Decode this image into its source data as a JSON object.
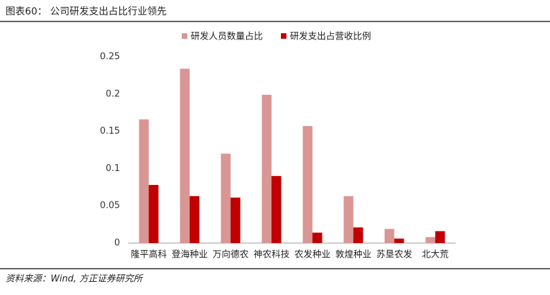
{
  "chart_data": {
    "type": "bar",
    "title": "图表60：  公司研发支出占比行业领先",
    "source": "资料来源：Wind, 方正证券研究所",
    "categories": [
      "隆平高科",
      "登海种业",
      "万向德农",
      "神农科技",
      "农发种业",
      "敦煌种业",
      "苏垦农发",
      "北大荒"
    ],
    "series": [
      {
        "name": "研发人员数量占比",
        "color": "#d99694",
        "values": [
          0.166,
          0.234,
          0.12,
          0.199,
          0.157,
          0.063,
          0.019,
          0.008
        ]
      },
      {
        "name": "研发支出占营收比例",
        "color": "#c00000",
        "values": [
          0.078,
          0.063,
          0.061,
          0.09,
          0.014,
          0.021,
          0.006,
          0.016
        ]
      }
    ],
    "ylim": [
      0,
      0.25
    ],
    "yticks": [
      0,
      0.05,
      0.1,
      0.15,
      0.2,
      0.25
    ],
    "grid": false
  }
}
